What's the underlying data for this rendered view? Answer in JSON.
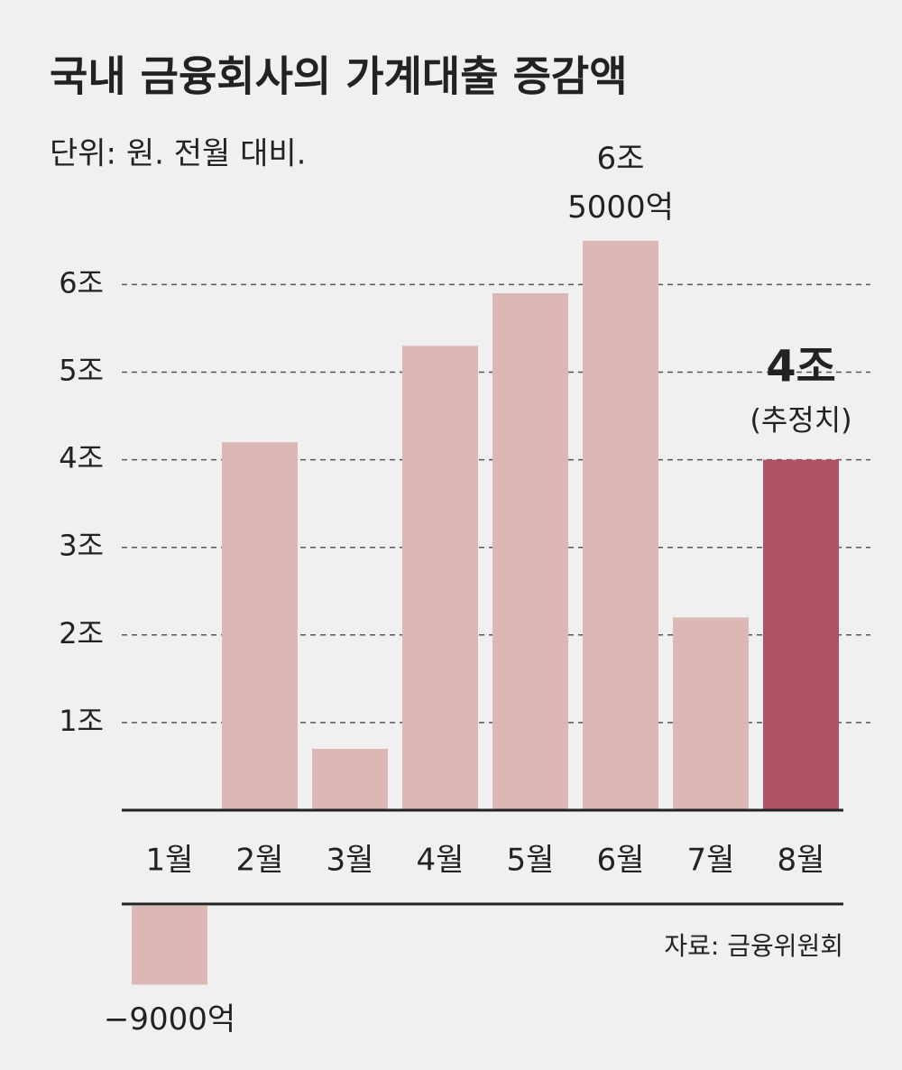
{
  "chart_data": {
    "type": "bar",
    "title": "국내 금융회사의 가계대출 증감액",
    "subtitle": "단위: 원. 전월 대비.",
    "source": "자료: 금융위원회",
    "categories": [
      "1월",
      "2월",
      "3월",
      "4월",
      "5월",
      "6월",
      "7월",
      "8월"
    ],
    "values": [
      -0.9,
      4.2,
      0.7,
      5.3,
      5.9,
      6.5,
      2.2,
      4.0
    ],
    "value_labels": [
      "−9000억",
      null,
      null,
      null,
      null,
      "6조 5000억",
      null,
      "4조"
    ],
    "colors": [
      "#dbb8b3",
      "#dbb8b3",
      "#dbb8b3",
      "#dbb8b3",
      "#dbb8b3",
      "#dbb8b3",
      "#dbb8b3",
      "#b05264"
    ],
    "annotation": "(추정치)",
    "ylim": [
      0,
      7
    ],
    "yticks": [
      {
        "value": 1,
        "label": "1조"
      },
      {
        "value": 2,
        "label": "2조"
      },
      {
        "value": 3,
        "label": "3조"
      },
      {
        "value": 4,
        "label": "4조"
      },
      {
        "value": 5,
        "label": "5조"
      },
      {
        "value": 6,
        "label": "6조"
      }
    ],
    "grid": true
  }
}
